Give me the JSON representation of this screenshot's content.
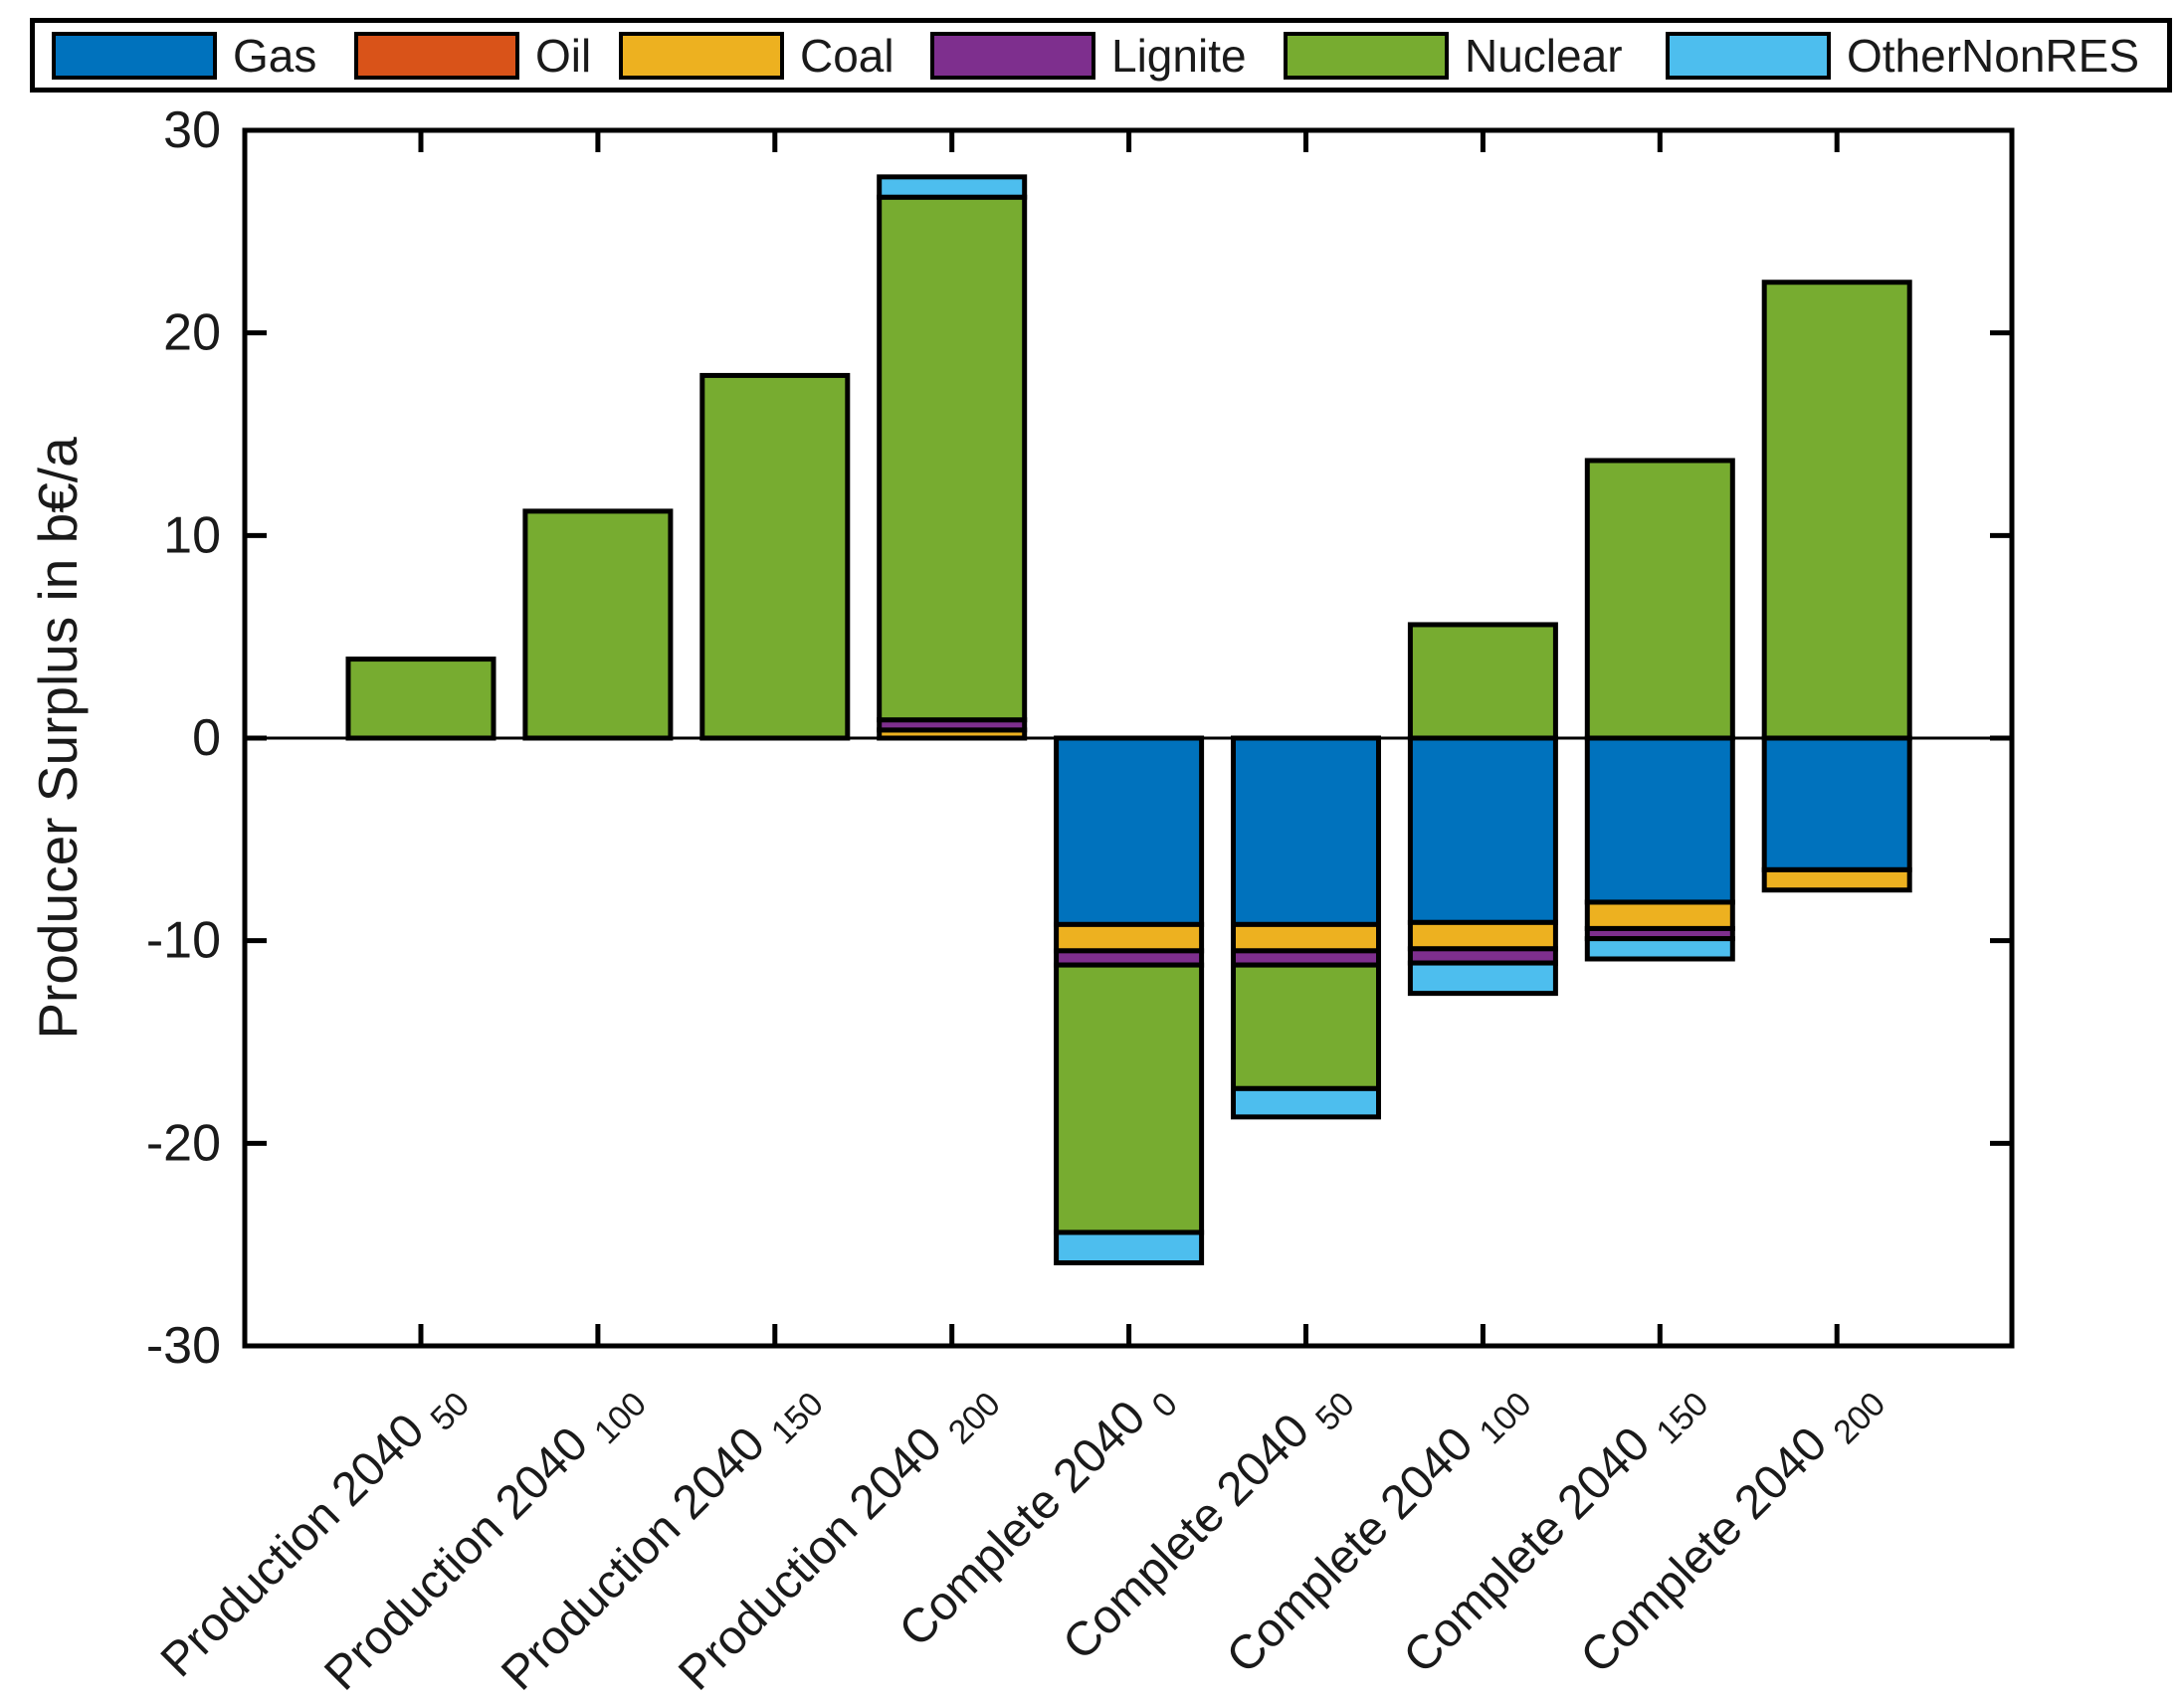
{
  "chart_data": {
    "type": "bar",
    "subtype": "stacked-vertical",
    "title": "",
    "ylabel": "Producer Surplus in b€/a",
    "xlabel": "",
    "ylim": [
      -30,
      30
    ],
    "yticks": [
      30,
      20,
      10,
      0,
      -10,
      -20,
      -30
    ],
    "grid": false,
    "zero_line": true,
    "legend_position": "top-horizontal",
    "bar_edge_color": "#000000",
    "background_color": "#ffffff",
    "legend": [
      {
        "label": "Gas",
        "color": "#0072BD"
      },
      {
        "label": "Oil",
        "color": "#D95319"
      },
      {
        "label": "Coal",
        "color": "#EDB120"
      },
      {
        "label": "Lignite",
        "color": "#7E2F8E"
      },
      {
        "label": "Nuclear",
        "color": "#77AC30"
      },
      {
        "label": "OtherNonRES",
        "color": "#4DBEEE"
      }
    ],
    "categories": [
      {
        "main": "Production 2040",
        "sub": "50"
      },
      {
        "main": "Production 2040",
        "sub": "100"
      },
      {
        "main": "Production 2040",
        "sub": "150"
      },
      {
        "main": "Production 2040",
        "sub": "200"
      },
      {
        "main": "Complete 2040",
        "sub": "0"
      },
      {
        "main": "Complete 2040",
        "sub": "50"
      },
      {
        "main": "Complete 2040",
        "sub": "100"
      },
      {
        "main": "Complete 2040",
        "sub": "150"
      },
      {
        "main": "Complete 2040",
        "sub": "200"
      }
    ],
    "series": [
      {
        "name": "Gas",
        "color": "#0072BD",
        "values": [
          0,
          0,
          0,
          0,
          -9.2,
          -9.2,
          -9.1,
          -8.1,
          -6.5
        ]
      },
      {
        "name": "Oil",
        "color": "#D95319",
        "values": [
          0,
          0,
          0,
          0,
          0,
          0,
          0,
          0,
          0
        ]
      },
      {
        "name": "Coal",
        "color": "#EDB120",
        "values": [
          0,
          0,
          0,
          0.4,
          -1.3,
          -1.3,
          -1.3,
          -1.3,
          -1.0
        ]
      },
      {
        "name": "Lignite",
        "color": "#7E2F8E",
        "values": [
          0,
          0,
          0,
          0.5,
          -0.7,
          -0.7,
          -0.7,
          -0.5,
          0
        ]
      },
      {
        "name": "Nuclear",
        "color": "#77AC30",
        "values": [
          3.9,
          11.2,
          17.9,
          25.8,
          -13.2,
          -6.1,
          5.6,
          13.7,
          22.5
        ]
      },
      {
        "name": "OtherNonRES",
        "color": "#4DBEEE",
        "values": [
          0,
          0,
          0,
          1.0,
          -1.5,
          -1.4,
          -1.5,
          -1.0,
          0
        ]
      }
    ],
    "totals_positive": [
      3.9,
      11.2,
      17.9,
      27.7,
      0,
      0,
      5.6,
      13.7,
      22.5
    ],
    "totals_negative": [
      0,
      0,
      0,
      0,
      -25.9,
      -18.7,
      -12.6,
      -10.9,
      -7.5
    ]
  }
}
